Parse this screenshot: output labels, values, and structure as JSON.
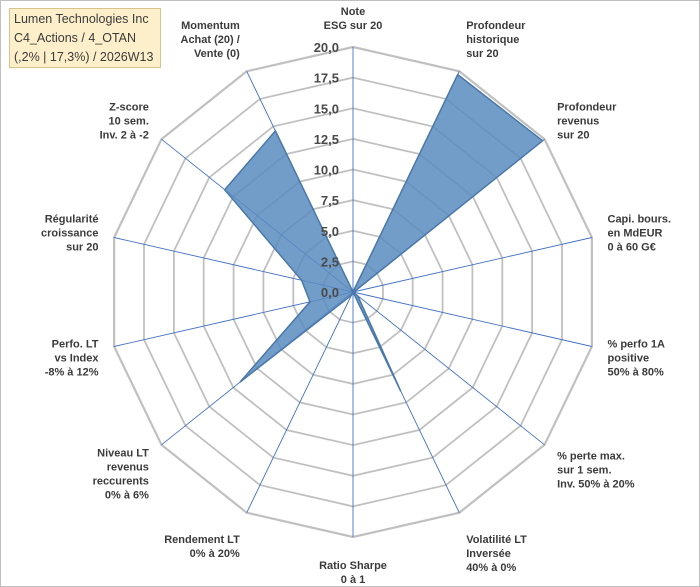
{
  "header": {
    "lines": [
      "Lumen Technologies Inc",
      "C4_Actions / 4_OTAN",
      "(,2% | 17,3%) / 2026W13"
    ]
  },
  "colors": {
    "fill": "#5b8cc0",
    "stroke": "#4a78a8",
    "grid": "#c0c0c0",
    "spoke": "#4472c4",
    "title_bg": "#fdefc9"
  },
  "chart_data": {
    "type": "radar",
    "rmin": 0,
    "rmax": 20,
    "rings": 8,
    "ticks": [
      "0,0",
      "2,5",
      "5,0",
      "7,5",
      "10,0",
      "12,5",
      "15,0",
      "17,5",
      "20,0"
    ],
    "axes": [
      {
        "label": [
          "Note",
          "ESG sur 20"
        ],
        "value": 0.0
      },
      {
        "label": [
          "Profondeur",
          "historique",
          "sur 20"
        ],
        "value": 19.7
      },
      {
        "label": [
          "Profondeur",
          "revenus",
          "sur 20"
        ],
        "value": 19.8
      },
      {
        "label": [
          "Capi. bours.",
          "en MdEUR",
          "0 à 60 G€"
        ],
        "value": 0.1
      },
      {
        "label": [
          "% perfo 1A",
          "positive",
          "50% à 80%"
        ],
        "value": 0.0
      },
      {
        "label": [
          "% perte max.",
          "sur 1 sem.",
          "Inv. 50% à 20%"
        ],
        "value": 0.5
      },
      {
        "label": [
          "Volatilité LT",
          "Inversée",
          "40% à 0%"
        ],
        "value": 9.0
      },
      {
        "label": [
          "Ratio Sharpe",
          "0 à 1"
        ],
        "value": 0.0
      },
      {
        "label": [
          "Rendement LT",
          "0% à 20%"
        ],
        "value": 0.3
      },
      {
        "label": [
          "Niveau LT",
          "revenus",
          "reccurents",
          "0% à 6%"
        ],
        "value": 11.8
      },
      {
        "label": [
          "Perfo. LT",
          "vs Index",
          "-8% à 12%"
        ],
        "value": 3.6
      },
      {
        "label": [
          "Régularité",
          "croissance",
          "sur 20"
        ],
        "value": 4.3
      },
      {
        "label": [
          "Z-score",
          "10 sem.",
          "Inv. 2 à -2"
        ],
        "value": 13.4
      },
      {
        "label": [
          "Momentum",
          "Achat (20) /",
          "Vente (0)"
        ],
        "value": 14.6
      }
    ]
  }
}
